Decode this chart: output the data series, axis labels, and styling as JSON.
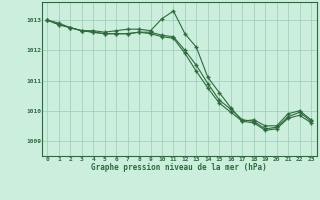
{
  "bg_color": "#cceedd",
  "grid_color": "#99ccbb",
  "line_color": "#2d6b3c",
  "title": "Graphe pression niveau de la mer (hPa)",
  "ylim": [
    1008.5,
    1013.6
  ],
  "xlim": [
    -0.5,
    23.5
  ],
  "yticks": [
    1009,
    1010,
    1011,
    1012,
    1013
  ],
  "xticks": [
    0,
    1,
    2,
    3,
    4,
    5,
    6,
    7,
    8,
    9,
    10,
    11,
    12,
    13,
    14,
    15,
    16,
    17,
    18,
    19,
    20,
    21,
    22,
    23
  ],
  "line1": [
    1013.0,
    1012.9,
    1012.75,
    1012.65,
    1012.65,
    1012.6,
    1012.65,
    1012.7,
    1012.7,
    1012.65,
    1013.05,
    1013.3,
    1012.55,
    1012.1,
    1011.1,
    1010.6,
    1010.1,
    1009.65,
    1009.7,
    1009.5,
    1009.5,
    1009.9,
    1010.0,
    1009.7
  ],
  "line2": [
    1013.0,
    1012.85,
    1012.75,
    1012.65,
    1012.6,
    1012.55,
    1012.55,
    1012.55,
    1012.6,
    1012.6,
    1012.5,
    1012.45,
    1012.0,
    1011.5,
    1010.9,
    1010.35,
    1010.05,
    1009.7,
    1009.65,
    1009.4,
    1009.45,
    1009.8,
    1009.95,
    1009.65
  ],
  "line3": [
    1013.0,
    1012.85,
    1012.75,
    1012.65,
    1012.6,
    1012.55,
    1012.55,
    1012.55,
    1012.6,
    1012.55,
    1012.45,
    1012.4,
    1011.9,
    1011.3,
    1010.75,
    1010.25,
    1009.95,
    1009.65,
    1009.6,
    1009.35,
    1009.4,
    1009.75,
    1009.85,
    1009.6
  ]
}
